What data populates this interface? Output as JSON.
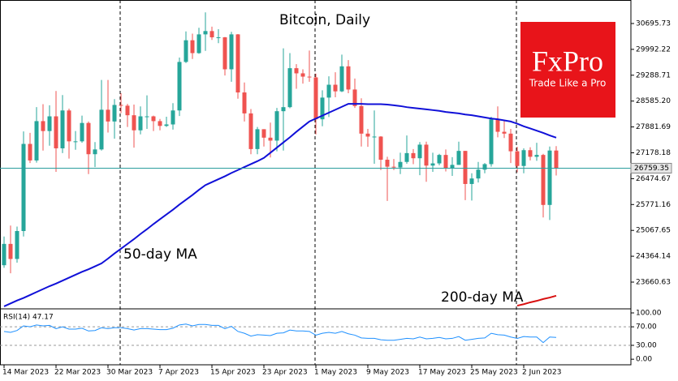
{
  "logo": {
    "brand": "FxPro",
    "tagline": "Trade Like a Pro"
  },
  "chart_data": [
    {
      "type": "candlestick",
      "title": "Bitcoin, Daily",
      "categories": [
        "14 Mar 2023",
        null,
        null,
        null,
        null,
        null,
        null,
        null,
        "22 Mar 2023",
        null,
        null,
        null,
        null,
        null,
        null,
        null,
        "30 Mar 2023",
        null,
        null,
        null,
        null,
        null,
        null,
        null,
        "7 Apr 2023",
        null,
        null,
        null,
        null,
        null,
        null,
        null,
        "15 Apr 2023",
        null,
        null,
        null,
        null,
        null,
        null,
        null,
        "23 Apr 2023",
        null,
        null,
        null,
        null,
        null,
        null,
        null,
        "1 May 2023",
        null,
        null,
        null,
        null,
        null,
        null,
        null,
        "9 May 2023",
        null,
        null,
        null,
        null,
        null,
        null,
        null,
        "17 May 2023",
        null,
        null,
        null,
        null,
        null,
        null,
        null,
        "25 May 2023",
        null,
        null,
        null,
        null,
        null,
        null,
        null,
        "2 Jun 2023",
        null,
        null,
        null,
        null,
        null
      ],
      "open": [
        24120,
        24700,
        24290,
        25050,
        27420,
        26970,
        28040,
        27770,
        28170,
        27300,
        28330,
        27490,
        27490,
        27990,
        27140,
        27270,
        28350,
        28030,
        28480,
        28460,
        28200,
        27790,
        28170,
        28170,
        28040,
        27910,
        27950,
        28330,
        29650,
        30240,
        29890,
        30400,
        30490,
        30320,
        30320,
        29450,
        30400,
        28820,
        28250,
        27280,
        27820,
        27590,
        27510,
        28310,
        28420,
        29480,
        29340,
        29250,
        29230,
        28090,
        28680,
        29030,
        28850,
        29530,
        28900,
        28450,
        27700,
        27620,
        27620,
        26990,
        26800,
        26780,
        26930,
        27170,
        27030,
        27400,
        26830,
        26890,
        27120,
        26750,
        26850,
        27230,
        26330,
        26480,
        26720,
        26870,
        28090,
        27750,
        27700,
        27220,
        26820,
        27250,
        27070,
        27120,
        25760,
        27240
      ],
      "high": [
        24900,
        25200,
        25170,
        27760,
        27720,
        28420,
        28500,
        28470,
        28860,
        28750,
        28380,
        27770,
        28190,
        28030,
        27470,
        29160,
        29160,
        28640,
        28800,
        28510,
        28490,
        28440,
        28740,
        28190,
        28100,
        28160,
        28530,
        29770,
        30480,
        30420,
        30580,
        31000,
        30610,
        30540,
        30330,
        30470,
        30410,
        29090,
        28370,
        27880,
        27820,
        28000,
        28400,
        30020,
        29890,
        29590,
        29450,
        29960,
        29330,
        28880,
        29260,
        29370,
        29850,
        29700,
        29200,
        28660,
        27830,
        28330,
        27630,
        27070,
        27010,
        27180,
        27650,
        27280,
        27470,
        27480,
        27180,
        27150,
        27270,
        27060,
        27480,
        27230,
        26620,
        26930,
        26900,
        28160,
        28440,
        28040,
        27830,
        27340,
        27300,
        27330,
        27450,
        27150,
        27350,
        27360
      ],
      "low": [
        24050,
        23900,
        24190,
        24900,
        26900,
        26910,
        27240,
        27370,
        26660,
        27170,
        27020,
        27260,
        27450,
        26600,
        26790,
        27240,
        27730,
        27560,
        28260,
        27880,
        27320,
        27680,
        27830,
        27770,
        27790,
        27880,
        27810,
        28180,
        29620,
        29730,
        29870,
        29950,
        30250,
        30160,
        29280,
        29110,
        28650,
        28030,
        27140,
        27140,
        27350,
        27050,
        27220,
        27240,
        28390,
        28920,
        29060,
        29110,
        27680,
        27900,
        28150,
        28690,
        28830,
        28800,
        28400,
        27350,
        27340,
        26880,
        26710,
        25870,
        26710,
        26600,
        26880,
        26870,
        26570,
        26390,
        26660,
        26840,
        26670,
        26550,
        26850,
        25890,
        25880,
        26370,
        26620,
        26800,
        27600,
        27580,
        26900,
        26650,
        26620,
        26970,
        26960,
        25420,
        25350,
        26560
      ],
      "close": [
        24700,
        24290,
        25050,
        27420,
        26970,
        28040,
        27770,
        28170,
        27300,
        28330,
        27490,
        27490,
        27990,
        27140,
        27270,
        28350,
        28030,
        28480,
        28460,
        28200,
        27790,
        28170,
        28170,
        28040,
        27910,
        27950,
        28330,
        29650,
        30240,
        29890,
        30400,
        30490,
        30320,
        30320,
        29450,
        30400,
        28820,
        28250,
        27280,
        27820,
        27590,
        27510,
        28310,
        28420,
        29480,
        29340,
        29250,
        29230,
        28090,
        28680,
        29030,
        28850,
        29530,
        28900,
        28450,
        27700,
        27620,
        27620,
        26990,
        26800,
        26780,
        26930,
        27170,
        27030,
        27400,
        26830,
        26890,
        27120,
        26750,
        26850,
        27230,
        26330,
        26480,
        26720,
        26870,
        28090,
        27750,
        27700,
        27220,
        26820,
        27250,
        27070,
        27120,
        25760,
        27240,
        26759.35
      ],
      "up_color": "#26a69a",
      "down_color": "#ef5350",
      "lines": [
        {
          "name": "50-day MA",
          "color": "#1010d8",
          "values": [
            23000,
            23080,
            23160,
            23230,
            23310,
            23390,
            23470,
            23550,
            23620,
            23700,
            23780,
            23860,
            23940,
            24010,
            24090,
            24170,
            24300,
            24440,
            24570,
            24700,
            24830,
            24970,
            25100,
            25240,
            25370,
            25500,
            25630,
            25770,
            25900,
            26030,
            26170,
            26300,
            26380,
            26460,
            26540,
            26630,
            26710,
            26790,
            26870,
            26950,
            27040,
            27180,
            27320,
            27460,
            27600,
            27750,
            27890,
            28030,
            28110,
            28190,
            28270,
            28350,
            28430,
            28510,
            28510,
            28510,
            28500,
            28500,
            28500,
            28490,
            28470,
            28450,
            28420,
            28400,
            28380,
            28360,
            28340,
            28320,
            28290,
            28270,
            28250,
            28220,
            28200,
            28170,
            28140,
            28110,
            28090,
            28060,
            28030,
            27970,
            27900,
            27840,
            27780,
            27720,
            27650,
            27590
          ]
        },
        {
          "name": "200-day MA",
          "color": "#d81010",
          "values": [
            null,
            null,
            null,
            null,
            null,
            null,
            null,
            null,
            null,
            null,
            null,
            null,
            null,
            null,
            null,
            null,
            null,
            null,
            null,
            null,
            null,
            null,
            null,
            null,
            null,
            null,
            null,
            null,
            null,
            null,
            null,
            null,
            null,
            null,
            null,
            null,
            null,
            null,
            null,
            null,
            null,
            null,
            null,
            null,
            null,
            null,
            null,
            null,
            null,
            null,
            null,
            null,
            null,
            null,
            null,
            null,
            null,
            null,
            null,
            null,
            null,
            null,
            null,
            null,
            null,
            null,
            null,
            null,
            null,
            null,
            null,
            null,
            null,
            null,
            null,
            null,
            null,
            null,
            null,
            23020,
            23060,
            23110,
            23150,
            23200,
            23240,
            23290
          ]
        }
      ],
      "current_price": 26759.35,
      "ylim": [
        22955,
        31335
      ],
      "yticks": [
        30695.73,
        29992.22,
        29288.71,
        {
          "value": 28585.2,
          "label": "28585.20"
        },
        27881.69,
        27178.18,
        26474.67,
        25771.16,
        25067.65,
        24364.14,
        23660.63
      ]
    },
    {
      "type": "line",
      "label": "RSI(14) 47.17",
      "color": "#1e90ff",
      "values": [
        60,
        58,
        62,
        72,
        70,
        74,
        72,
        73,
        66,
        70,
        65,
        65,
        67,
        61,
        62,
        68,
        66,
        68,
        68,
        66,
        63,
        66,
        66,
        65,
        64,
        64,
        67,
        74,
        76,
        72,
        75,
        75,
        73,
        73,
        66,
        71,
        60,
        56,
        50,
        53,
        52,
        51,
        56,
        57,
        63,
        61,
        61,
        60,
        52,
        56,
        58,
        56,
        60,
        55,
        52,
        46,
        45,
        45,
        42,
        41,
        41,
        43,
        45,
        44,
        48,
        44,
        45,
        47,
        44,
        45,
        49,
        41,
        43,
        45,
        46,
        56,
        53,
        52,
        48,
        45,
        49,
        48,
        48,
        36,
        48,
        47.17
      ],
      "ylim": [
        -12,
        107
      ],
      "yticks": [
        {
          "value": 100,
          "label": "100.00"
        },
        {
          "value": 70,
          "label": "70.00"
        },
        {
          "value": 30,
          "label": "30.00"
        },
        {
          "value": 0,
          "label": "0.00"
        }
      ],
      "levels": [
        70,
        30
      ]
    }
  ]
}
